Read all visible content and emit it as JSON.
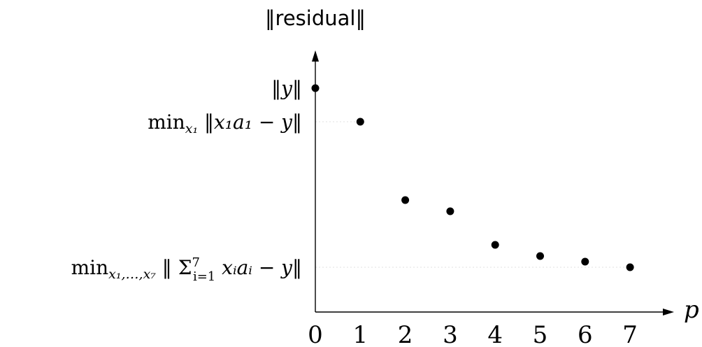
{
  "chart_data": {
    "type": "scatter",
    "title": "",
    "xlabel": "p",
    "ylabel": "‖residual‖",
    "x": [
      0,
      1,
      2,
      3,
      4,
      5,
      6,
      7
    ],
    "y": [
      1.0,
      0.85,
      0.5,
      0.45,
      0.3,
      0.25,
      0.225,
      0.2
    ],
    "xticks": [
      "0",
      "1",
      "2",
      "3",
      "4",
      "5",
      "6",
      "7"
    ],
    "xlim": [
      0,
      8
    ],
    "ylim": [
      -0.2,
      1.4
    ],
    "grid": false,
    "y_annotations": [
      {
        "label": "‖y‖",
        "y": 1.0
      },
      {
        "label": "min_{x₁} ‖x₁a₁ − y‖",
        "y": 0.85,
        "prefix": "min",
        "subscript": "x₁",
        "body": " ‖x₁a₁ − y‖"
      },
      {
        "label": "min_{x₁,…,x₇} ‖ Σ_{i=1}^{7} xᵢaᵢ − y‖",
        "y": 0.2,
        "prefix": "min",
        "subscript": "x₁,…,x₇",
        "body_start": " ‖ ",
        "sum": "Σ",
        "sum_sub": "i=1",
        "sum_sup": "7",
        "body_end": " xᵢaᵢ − y‖"
      }
    ]
  }
}
